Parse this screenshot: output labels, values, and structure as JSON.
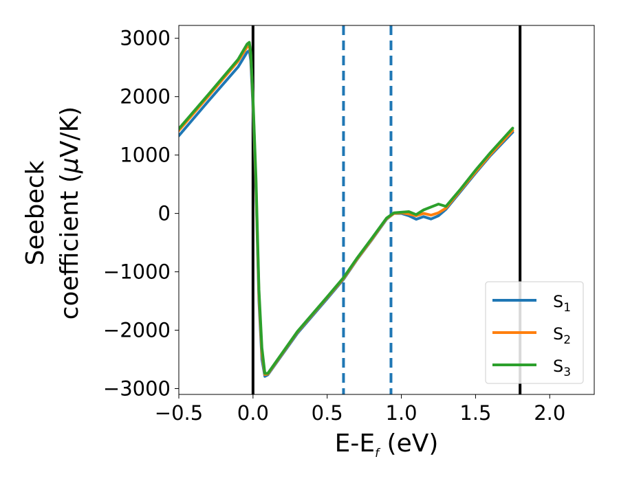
{
  "chart_data": {
    "type": "line",
    "xlabel": {
      "main": "E-E",
      "sub": "f",
      "rest": " (eV)"
    },
    "ylabel": {
      "line1": "Seebeck",
      "line2_pre": "coefficient  (",
      "line2_mu": "μ",
      "line2_post": "V/K)"
    },
    "xlim": [
      -0.5,
      2.3
    ],
    "ylim": [
      -3100,
      3220
    ],
    "xticks": [
      -0.5,
      0.0,
      0.5,
      1.0,
      1.5,
      2.0
    ],
    "xtick_labels": [
      "−0.5",
      "0.0",
      "0.5",
      "1.0",
      "1.5",
      "2.0"
    ],
    "yticks": [
      3000,
      2000,
      1000,
      0,
      -1000,
      -2000,
      -3000
    ],
    "ytick_labels": [
      "3000",
      "2000",
      "1000",
      "0",
      "−1000",
      "−2000",
      "−3000"
    ],
    "grid": false,
    "legend_position": "bottom-right",
    "vlines": [
      {
        "x": 0.0,
        "style": "solid",
        "color": "#000000"
      },
      {
        "x": 1.8,
        "style": "solid",
        "color": "#000000"
      },
      {
        "x": 0.61,
        "style": "dashed",
        "color": "#1f77b4"
      },
      {
        "x": 0.93,
        "style": "dashed",
        "color": "#1f77b4"
      }
    ],
    "series": [
      {
        "name": "S",
        "sub": "1",
        "color": "#1f77b4",
        "points": [
          [
            -0.5,
            1330
          ],
          [
            -0.3,
            1925
          ],
          [
            -0.1,
            2510
          ],
          [
            -0.04,
            2760
          ],
          [
            -0.025,
            2790
          ],
          [
            -0.015,
            2620
          ],
          [
            0.0,
            1800
          ],
          [
            0.02,
            400
          ],
          [
            0.04,
            -1500
          ],
          [
            0.06,
            -2500
          ],
          [
            0.08,
            -2790
          ],
          [
            0.1,
            -2765
          ],
          [
            0.3,
            -2050
          ],
          [
            0.5,
            -1460
          ],
          [
            0.61,
            -1130
          ],
          [
            0.7,
            -795
          ],
          [
            0.8,
            -455
          ],
          [
            0.9,
            -100
          ],
          [
            0.95,
            0
          ],
          [
            1.0,
            0
          ],
          [
            1.05,
            -40
          ],
          [
            1.1,
            -100
          ],
          [
            1.15,
            -55
          ],
          [
            1.2,
            -95
          ],
          [
            1.25,
            -40
          ],
          [
            1.3,
            70
          ],
          [
            1.4,
            380
          ],
          [
            1.5,
            690
          ],
          [
            1.6,
            990
          ],
          [
            1.75,
            1390
          ]
        ]
      },
      {
        "name": "S",
        "sub": "2",
        "color": "#ff7f0e",
        "points": [
          [
            -0.5,
            1420
          ],
          [
            -0.3,
            2010
          ],
          [
            -0.1,
            2610
          ],
          [
            -0.04,
            2850
          ],
          [
            -0.025,
            2870
          ],
          [
            -0.015,
            2720
          ],
          [
            0.0,
            1900
          ],
          [
            0.02,
            500
          ],
          [
            0.04,
            -1400
          ],
          [
            0.06,
            -2400
          ],
          [
            0.08,
            -2760
          ],
          [
            0.1,
            -2750
          ],
          [
            0.3,
            -2030
          ],
          [
            0.5,
            -1440
          ],
          [
            0.61,
            -1115
          ],
          [
            0.7,
            -785
          ],
          [
            0.8,
            -445
          ],
          [
            0.9,
            -90
          ],
          [
            0.95,
            0
          ],
          [
            1.0,
            10
          ],
          [
            1.05,
            -10
          ],
          [
            1.1,
            -40
          ],
          [
            1.15,
            0
          ],
          [
            1.2,
            -30
          ],
          [
            1.25,
            10
          ],
          [
            1.3,
            90
          ],
          [
            1.4,
            400
          ],
          [
            1.5,
            710
          ],
          [
            1.6,
            1010
          ],
          [
            1.75,
            1420
          ]
        ]
      },
      {
        "name": "S",
        "sub": "3",
        "color": "#2ca02c",
        "points": [
          [
            -0.5,
            1450
          ],
          [
            -0.3,
            2040
          ],
          [
            -0.1,
            2640
          ],
          [
            -0.04,
            2900
          ],
          [
            -0.025,
            2930
          ],
          [
            -0.015,
            2760
          ],
          [
            0.0,
            1950
          ],
          [
            0.02,
            600
          ],
          [
            0.04,
            -1300
          ],
          [
            0.06,
            -2300
          ],
          [
            0.08,
            -2740
          ],
          [
            0.1,
            -2740
          ],
          [
            0.3,
            -2020
          ],
          [
            0.5,
            -1430
          ],
          [
            0.61,
            -1100
          ],
          [
            0.7,
            -770
          ],
          [
            0.8,
            -430
          ],
          [
            0.9,
            -80
          ],
          [
            0.95,
            10
          ],
          [
            1.0,
            20
          ],
          [
            1.05,
            30
          ],
          [
            1.1,
            -20
          ],
          [
            1.15,
            60
          ],
          [
            1.2,
            110
          ],
          [
            1.25,
            160
          ],
          [
            1.3,
            120
          ],
          [
            1.4,
            420
          ],
          [
            1.5,
            740
          ],
          [
            1.6,
            1040
          ],
          [
            1.75,
            1460
          ]
        ]
      }
    ]
  }
}
